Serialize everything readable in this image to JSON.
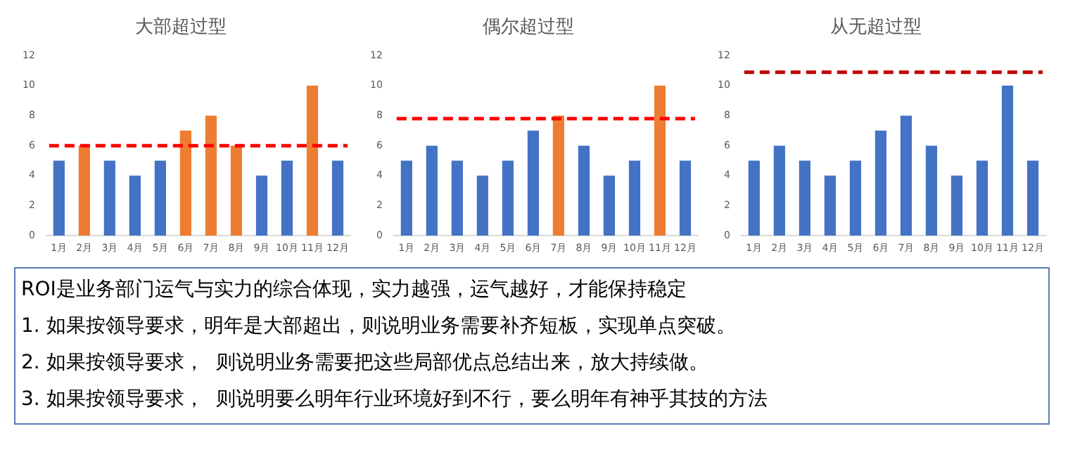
{
  "chart_data": [
    {
      "type": "bar",
      "title": "大部超过型",
      "categories": [
        "1月",
        "2月",
        "3月",
        "4月",
        "5月",
        "6月",
        "7月",
        "8月",
        "9月",
        "10月",
        "11月",
        "12月"
      ],
      "values": [
        5,
        6,
        5,
        4,
        5,
        7,
        8,
        6,
        4,
        5,
        10,
        5
      ],
      "colors": [
        "#4472c4",
        "#ed7d31",
        "#4472c4",
        "#4472c4",
        "#4472c4",
        "#ed7d31",
        "#ed7d31",
        "#ed7d31",
        "#4472c4",
        "#4472c4",
        "#ed7d31",
        "#4472c4"
      ],
      "ylim": [
        0,
        12
      ],
      "yticks": [
        0,
        2,
        4,
        6,
        8,
        10,
        12
      ],
      "grid": false,
      "ref_lines": [
        {
          "axis": "y",
          "value": 6,
          "color": "#ff0000",
          "line_style": "dashed"
        }
      ]
    },
    {
      "type": "bar",
      "title": "偶尔超过型",
      "categories": [
        "1月",
        "2月",
        "3月",
        "4月",
        "5月",
        "6月",
        "7月",
        "8月",
        "9月",
        "10月",
        "11月",
        "12月"
      ],
      "values": [
        5,
        6,
        5,
        4,
        5,
        7,
        8,
        6,
        4,
        5,
        10,
        5
      ],
      "colors": [
        "#4472c4",
        "#4472c4",
        "#4472c4",
        "#4472c4",
        "#4472c4",
        "#4472c4",
        "#ed7d31",
        "#4472c4",
        "#4472c4",
        "#4472c4",
        "#ed7d31",
        "#4472c4"
      ],
      "ylim": [
        0,
        12
      ],
      "yticks": [
        0,
        2,
        4,
        6,
        8,
        10,
        12
      ],
      "grid": false,
      "ref_lines": [
        {
          "axis": "y",
          "value": 7.8,
          "color": "#ff0000",
          "line_style": "dashed"
        }
      ]
    },
    {
      "type": "bar",
      "title": "从无超过型",
      "categories": [
        "1月",
        "2月",
        "3月",
        "4月",
        "5月",
        "6月",
        "7月",
        "8月",
        "9月",
        "10月",
        "11月",
        "12月"
      ],
      "values": [
        5,
        6,
        5,
        4,
        5,
        7,
        8,
        6,
        4,
        5,
        10,
        5
      ],
      "color": "#4472c4",
      "ylim": [
        0,
        12
      ],
      "yticks": [
        0,
        2,
        4,
        6,
        8,
        10,
        12
      ],
      "grid": false,
      "ref_lines": [
        {
          "axis": "y",
          "value": 10.9,
          "color": "#c00000",
          "line_style": "dashed"
        }
      ]
    },
    {
      "type": "other",
      "annotations": [
        "ROI是业务部门运气与实力的综合体现，实力越强，运气越好，才能保持稳定",
        "1. 如果按领导要求，明年是大部超出，则说明业务需要补齐短板，实现单点突破。",
        "2. 如果按领导要求，  则说明业务需要把这些局部优点总结出来，放大持续做。",
        "3. 如果按领导要求，  则说明要么明年行业环境好到不行，要么明年有神乎其技的方法"
      ]
    }
  ]
}
